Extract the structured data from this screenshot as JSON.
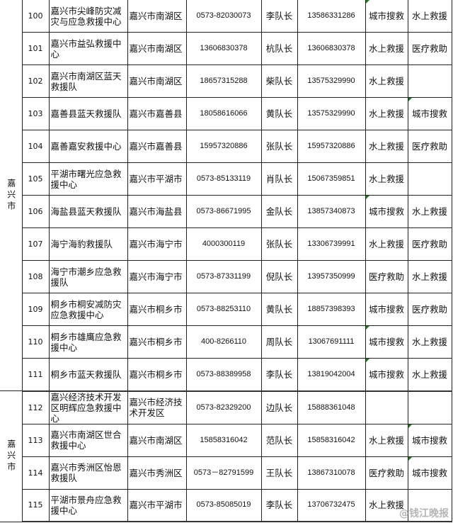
{
  "groups": [
    {
      "region": "嘉兴市",
      "rows": [
        {
          "no": "100",
          "name": "嘉兴市尖峰防灾减灾与应急救援中心",
          "area": "嘉兴市南湖区",
          "phone": "0573-82030073",
          "leader": "李队长",
          "mobile": "13586331286",
          "cap1": "城市搜救",
          "cap2": "水上救援",
          "mark1": true,
          "mark2": false
        },
        {
          "no": "101",
          "name": "嘉兴市益弘救援中心",
          "area": "嘉兴市南湖区",
          "phone": "13606830378",
          "leader": "杭队长",
          "mobile": "13606830378",
          "cap1": "水上救援",
          "cap2": "医疗救助",
          "mark1": false,
          "mark2": false
        },
        {
          "no": "102",
          "name": "嘉兴市南湖区蓝天救援队",
          "area": "嘉兴市南湖区",
          "phone": "18657315288",
          "leader": "柴队长",
          "mobile": "13575329990",
          "cap1": "水上救援",
          "cap2": "",
          "mark1": false,
          "mark2": false
        },
        {
          "no": "103",
          "name": "嘉善县蓝天救援队",
          "area": "嘉兴市嘉善县",
          "phone": "18058616066",
          "leader": "黄队长",
          "mobile": "13575329990",
          "cap1": "水上救援",
          "cap2": "城市搜救",
          "mark1": false,
          "mark2": true
        },
        {
          "no": "104",
          "name": "嘉善嘉安救援中心",
          "area": "嘉兴市嘉善县",
          "phone": "15957320886",
          "leader": "张队长",
          "mobile": "15957320886",
          "cap1": "水上救援",
          "cap2": "医疗救助",
          "mark1": false,
          "mark2": false
        },
        {
          "no": "105",
          "name": "平湖市曙光应急救援中心",
          "area": "嘉兴市平湖市",
          "phone": "0573-85133119",
          "leader": "肖队长",
          "mobile": "15067359851",
          "cap1": "水上救援",
          "cap2": "",
          "mark1": false,
          "mark2": false
        },
        {
          "no": "106",
          "name": "海盐县蓝天救援队",
          "area": "嘉兴市海盐县",
          "phone": "0573-86671995",
          "leader": "金队长",
          "mobile": "13857340873",
          "cap1": "城市搜救",
          "cap2": "水上救援",
          "mark1": true,
          "mark2": false
        },
        {
          "no": "107",
          "name": "海宁海豹救援队",
          "area": "嘉兴市海宁市",
          "phone": "4000300119",
          "leader": "张队长",
          "mobile": "13306739991",
          "cap1": "水上救援",
          "cap2": "医疗救助",
          "mark1": false,
          "mark2": false
        },
        {
          "no": "108",
          "name": "海宁市潮乡应急救援队",
          "area": "嘉兴市海宁市",
          "phone": "0573-87331199",
          "leader": "倪队长",
          "mobile": "13957350999",
          "cap1": "医疗救助",
          "cap2": "水上救援",
          "mark1": false,
          "mark2": false
        },
        {
          "no": "109",
          "name": "桐乡市桐安减防灾应急救援中心",
          "area": "嘉兴市桐乡市",
          "phone": "0573-88253110",
          "leader": "黄队长",
          "mobile": "18857398393",
          "cap1": "城市搜救",
          "cap2": "医疗救助",
          "mark1": false,
          "mark2": false
        },
        {
          "no": "110",
          "name": "桐乡市雄鹰应急救援中心",
          "area": "嘉兴市桐乡市",
          "phone": "400-8266110",
          "leader": "周队长",
          "mobile": "13067691111",
          "cap1": "城市搜救",
          "cap2": "水上救援",
          "mark1": true,
          "mark2": false
        },
        {
          "no": "111",
          "name": "桐乡市蓝天救援队",
          "area": "嘉兴市桐乡市",
          "phone": "0573-88389958",
          "leader": "李队长",
          "mobile": "13819042004",
          "cap1": "城市搜救",
          "cap2": "水上救援",
          "mark1": true,
          "mark2": false
        }
      ]
    },
    {
      "region": "嘉兴市",
      "rows": [
        {
          "no": "112",
          "name": "嘉兴经济技术开发区明辉应急救援中心",
          "area": "嘉兴市经济技术开发区",
          "phone": "0573-82329200",
          "leader": "边队长",
          "mobile": "15888361048",
          "cap1": "",
          "cap2": "",
          "mark1": false,
          "mark2": false
        },
        {
          "no": "113",
          "name": "嘉兴市南湖区世合救援中心",
          "area": "嘉兴市南湖区",
          "phone": "15858316042",
          "leader": "范队长",
          "mobile": "15858316042",
          "cap1": "水上救援",
          "cap2": "城市搜救",
          "mark1": false,
          "mark2": true
        },
        {
          "no": "114",
          "name": "嘉兴市秀洲区怡恩救援队",
          "area": "嘉兴市秀洲区",
          "phone": "0573－82791599",
          "leader": "王队长",
          "mobile": "13867310078",
          "cap1": "医疗救助",
          "cap2": "城市搜救",
          "mark1": false,
          "mark2": true
        },
        {
          "no": "115",
          "name": "平湖市景舟应急救援中心",
          "area": "嘉兴市平湖市",
          "phone": "0573-85085019",
          "leader": "李队长",
          "mobile": "13706732475",
          "cap1": "水上救援",
          "cap2": "",
          "mark1": false,
          "mark2": false
        }
      ]
    }
  ],
  "watermark": "@钱江晚报",
  "colors": {
    "cell_marker": "#1c7a1c",
    "border": "#222222"
  }
}
